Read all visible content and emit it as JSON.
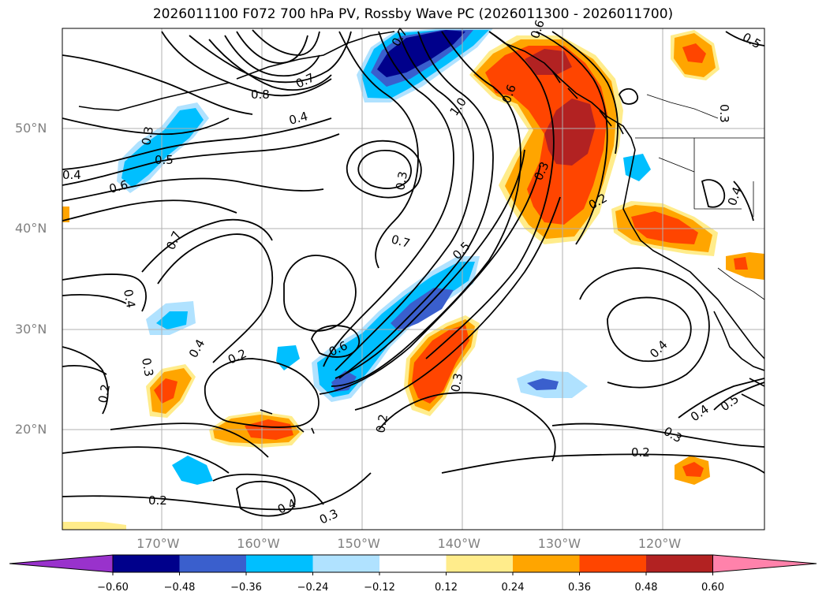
{
  "title": "2026011100 F072 700 hPa PV, Rossby Wave PC (2026011300 - 2026011700)",
  "lat_labels": [
    {
      "text": "50°N",
      "lat": 50
    },
    {
      "text": "40°N",
      "lat": 40
    },
    {
      "text": "30°N",
      "lat": 30
    },
    {
      "text": "20°N",
      "lat": 20
    }
  ],
  "lon_labels": [
    {
      "text": "170°W",
      "lon": -170
    },
    {
      "text": "160°W",
      "lon": -160
    },
    {
      "text": "150°W",
      "lon": -150
    },
    {
      "text": "140°W",
      "lon": -140
    },
    {
      "text": "130°W",
      "lon": -130
    },
    {
      "text": "120°W",
      "lon": -120
    }
  ],
  "colorbar": {
    "colors": [
      "#9932cc",
      "#00008b",
      "#3a5fcd",
      "#00bfff",
      "#b0e2ff",
      "#ffffff",
      "#ffec8b",
      "#ffa500",
      "#ff4500",
      "#b22222",
      "#ff82ab"
    ],
    "ticks": [
      "−0.60",
      "−0.48",
      "−0.36",
      "−0.24",
      "−0.12",
      "0.12",
      "0.24",
      "0.36",
      "0.48",
      "0.60"
    ]
  },
  "contour_labels": [
    "0.7",
    "0.8",
    "0.7",
    "0.3",
    "0.5",
    "0.4",
    "0.6",
    "1.0",
    "0.6",
    "0.4",
    "0.3",
    "0.6",
    "0.3",
    "0.2",
    "0.4",
    "0.3",
    "0.7",
    "0.7",
    "0.5",
    "0.4",
    "0.4",
    "0.3",
    "0.2",
    "0.2",
    "0.6",
    "0.3",
    "0.2",
    "0.4",
    "0.4",
    "0.5",
    "0.3",
    "0.2",
    "0.2",
    "0.4",
    "0.3",
    "0.5"
  ]
}
